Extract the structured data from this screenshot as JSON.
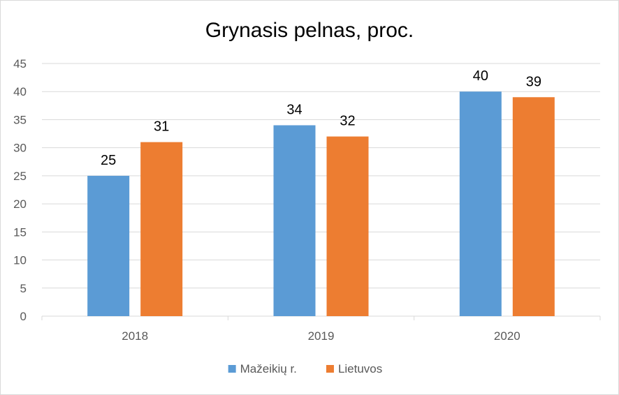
{
  "chart_data": {
    "type": "bar",
    "title": "Grynasis pelnas, proc.",
    "xlabel": "",
    "ylabel": "",
    "categories": [
      "2018",
      "2019",
      "2020"
    ],
    "series": [
      {
        "name": "Mažeikių r.",
        "color": "#5B9BD5",
        "values": [
          25,
          34,
          40
        ]
      },
      {
        "name": "Lietuvos",
        "color": "#ED7D31",
        "values": [
          31,
          32,
          39
        ]
      }
    ],
    "ylim": [
      0,
      45
    ],
    "yticks": [
      0,
      5,
      10,
      15,
      20,
      25,
      30,
      35,
      40,
      45
    ],
    "grid": true,
    "legend": "bottom",
    "data_labels": true
  }
}
